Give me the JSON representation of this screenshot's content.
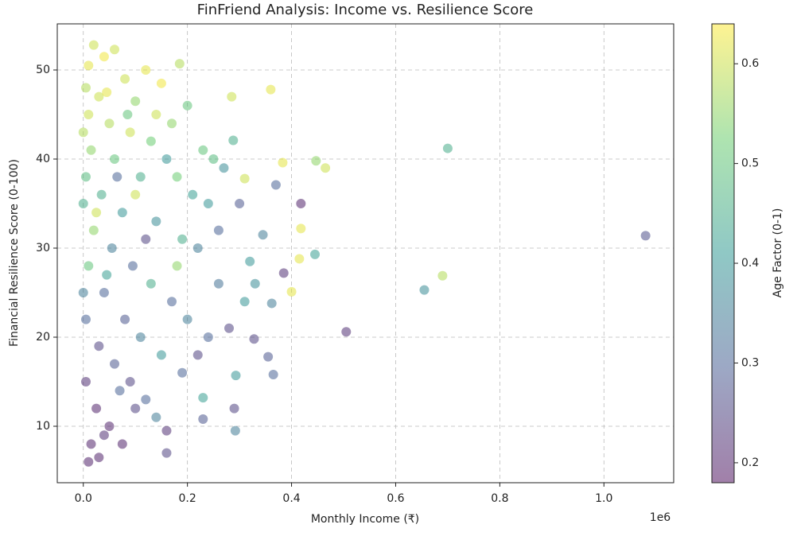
{
  "chart_data": {
    "type": "scatter",
    "title": "FinFriend Analysis: Income vs. Resilience Score",
    "x_label": "Monthly Income (₹)",
    "y_label": "Financial Resilience Score (0-100)",
    "x_offset_label": "1e6",
    "colorbar_label": "Age Factor (0-1)",
    "colormap": "viridis",
    "alpha": 0.5,
    "grid": true,
    "xlim": [
      -50000,
      1134000
    ],
    "ylim": [
      3.66,
      55.18
    ],
    "clim": [
      0.18,
      0.64
    ],
    "xticks": [
      {
        "value": 0,
        "label": "0.0"
      },
      {
        "value": 200000,
        "label": "0.2"
      },
      {
        "value": 400000,
        "label": "0.4"
      },
      {
        "value": 600000,
        "label": "0.6"
      },
      {
        "value": 800000,
        "label": "0.8"
      },
      {
        "value": 1000000,
        "label": "1.0"
      }
    ],
    "yticks": [
      10,
      20,
      30,
      40,
      50
    ],
    "cticks": [
      0.2,
      0.3,
      0.4,
      0.5,
      0.6
    ],
    "x": [
      1080000,
      700000,
      690000,
      655000,
      505000,
      465000,
      447000,
      445000,
      418000,
      418000,
      415000,
      400000,
      383000,
      385000,
      370000,
      360000,
      362000,
      365000,
      355000,
      345000,
      328000,
      310000,
      290000,
      292000,
      285000,
      288000,
      293000,
      230000,
      230000,
      185000,
      160000,
      20000,
      60000,
      10000,
      40000,
      80000,
      120000,
      5000,
      30000,
      100000,
      150000,
      200000,
      170000,
      10000,
      50000,
      90000,
      130000,
      230000,
      250000,
      270000,
      15000,
      60000,
      110000,
      180000,
      210000,
      240000,
      5000,
      35000,
      75000,
      140000,
      190000,
      260000,
      300000,
      320000,
      20000,
      55000,
      95000,
      130000,
      170000,
      200000,
      240000,
      280000,
      310000,
      10000,
      40000,
      80000,
      110000,
      150000,
      190000,
      220000,
      5000,
      30000,
      60000,
      90000,
      120000,
      140000,
      160000,
      5000,
      25000,
      50000,
      75000,
      15000,
      30000,
      10000,
      40000,
      100000,
      70000,
      0,
      0,
      0,
      45000,
      85000,
      160000,
      65000,
      25000,
      120000,
      180000,
      100000,
      140000,
      45000,
      220000,
      260000,
      330000
    ],
    "y": [
      31.4,
      41.2,
      26.9,
      25.3,
      20.6,
      39.0,
      39.8,
      29.3,
      35.0,
      32.2,
      28.8,
      25.1,
      39.6,
      27.2,
      37.1,
      47.8,
      23.8,
      15.8,
      17.8,
      31.5,
      19.8,
      37.8,
      12.0,
      9.5,
      47.0,
      42.1,
      15.7,
      10.8,
      13.2,
      50.7,
      7.0,
      52.8,
      52.3,
      50.5,
      51.5,
      49,
      50,
      48,
      47,
      46.5,
      48.5,
      46,
      44,
      45,
      44,
      43,
      42,
      41,
      40,
      39,
      41,
      40,
      38,
      38,
      36,
      35,
      38,
      36,
      34,
      33,
      31,
      32,
      35,
      28.5,
      32,
      30,
      28,
      26,
      24,
      22,
      20,
      21,
      24,
      28,
      25,
      22,
      20,
      18,
      16,
      18,
      22,
      19,
      17,
      15,
      13,
      11,
      9.5,
      15,
      12,
      10,
      8,
      8,
      6.5,
      6,
      9,
      12,
      14,
      35,
      25,
      43,
      47.5,
      45,
      40,
      38,
      34,
      31,
      28,
      36,
      45,
      27,
      30,
      26,
      26
    ],
    "c": [
      0.27,
      0.45,
      0.58,
      0.38,
      0.22,
      0.6,
      0.55,
      0.42,
      0.2,
      0.62,
      0.62,
      0.62,
      0.62,
      0.22,
      0.3,
      0.62,
      0.35,
      0.3,
      0.28,
      0.35,
      0.25,
      0.6,
      0.25,
      0.35,
      0.6,
      0.45,
      0.4,
      0.28,
      0.42,
      0.58,
      0.25,
      0.6,
      0.6,
      0.62,
      0.63,
      0.6,
      0.62,
      0.58,
      0.6,
      0.55,
      0.63,
      0.5,
      0.55,
      0.6,
      0.58,
      0.6,
      0.52,
      0.5,
      0.48,
      0.38,
      0.55,
      0.5,
      0.45,
      0.52,
      0.42,
      0.4,
      0.48,
      0.45,
      0.4,
      0.38,
      0.45,
      0.3,
      0.28,
      0.4,
      0.55,
      0.35,
      0.3,
      0.45,
      0.3,
      0.35,
      0.3,
      0.25,
      0.4,
      0.5,
      0.3,
      0.28,
      0.35,
      0.4,
      0.3,
      0.25,
      0.3,
      0.25,
      0.28,
      0.25,
      0.3,
      0.35,
      0.22,
      0.22,
      0.2,
      0.2,
      0.2,
      0.2,
      0.2,
      0.2,
      0.22,
      0.25,
      0.3,
      0.45,
      0.35,
      0.58,
      0.62,
      0.5,
      0.4,
      0.3,
      0.6,
      0.25,
      0.55,
      0.6,
      0.6,
      0.42,
      0.35,
      0.33,
      0.38
    ]
  }
}
